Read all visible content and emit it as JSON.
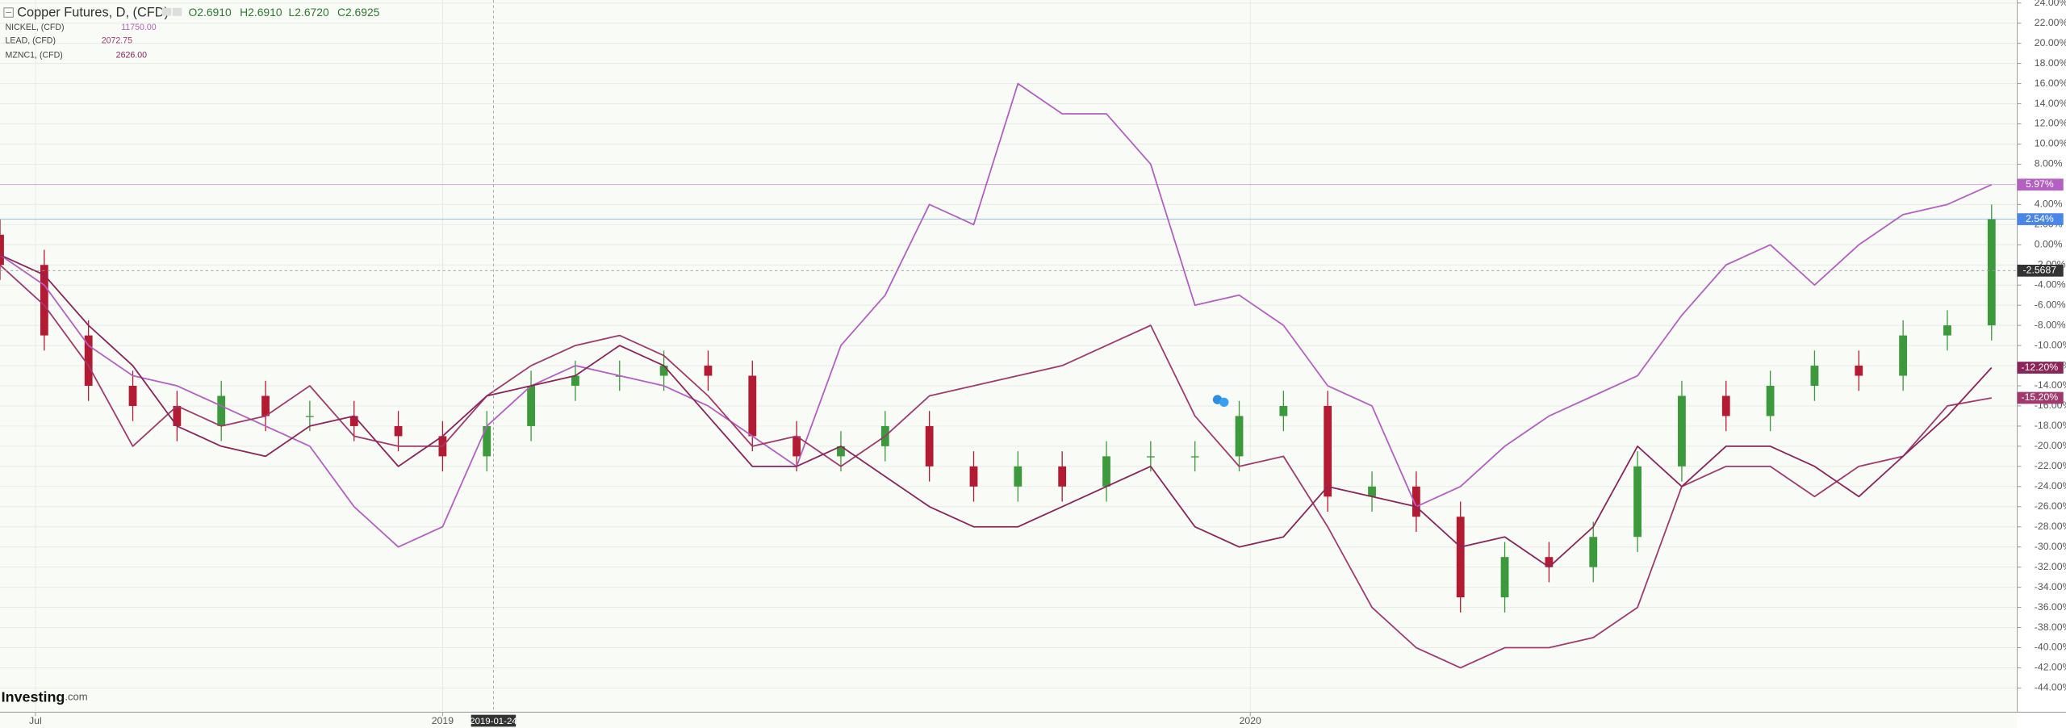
{
  "chart_data": {
    "type": "candlestick",
    "percent_scale": true,
    "grid": true,
    "watermark": {
      "brand": "Investing",
      "suffix": ".com"
    },
    "x": [
      "2018-06-15",
      "2018-07-05",
      "2018-07-25",
      "2018-08-14",
      "2018-09-03",
      "2018-09-23",
      "2018-10-13",
      "2018-11-02",
      "2018-11-22",
      "2018-12-12",
      "2019-01-01",
      "2019-01-21",
      "2019-02-10",
      "2019-03-02",
      "2019-03-22",
      "2019-04-11",
      "2019-05-01",
      "2019-05-21",
      "2019-06-10",
      "2019-06-30",
      "2019-07-20",
      "2019-08-09",
      "2019-08-29",
      "2019-09-18",
      "2019-10-08",
      "2019-10-28",
      "2019-11-17",
      "2019-12-07",
      "2019-12-27",
      "2020-01-16",
      "2020-02-05",
      "2020-02-25",
      "2020-03-16",
      "2020-04-05",
      "2020-04-25",
      "2020-05-15",
      "2020-06-04",
      "2020-06-24",
      "2020-07-14",
      "2020-08-03",
      "2020-08-23",
      "2020-09-12",
      "2020-10-02",
      "2020-10-22",
      "2020-11-11",
      "2020-12-01"
    ],
    "xlim": [
      "2018-06-15",
      "2020-12-12"
    ],
    "xticks": [
      {
        "value": "2018-07-01",
        "label": "Jul"
      },
      {
        "value": "2019-01-01",
        "label": "2019"
      },
      {
        "value": "2020-01-01",
        "label": "2020"
      }
    ],
    "ylim": [
      -46.4,
      24.3
    ],
    "yticks": [
      {
        "value": 24,
        "label": "24.00%"
      },
      {
        "value": 22,
        "label": "22.00%"
      },
      {
        "value": 20,
        "label": "20.00%"
      },
      {
        "value": 18,
        "label": "18.00%"
      },
      {
        "value": 16,
        "label": "16.00%"
      },
      {
        "value": 14,
        "label": "14.00%"
      },
      {
        "value": 12,
        "label": "12.00%"
      },
      {
        "value": 10,
        "label": "10.00%"
      },
      {
        "value": 8,
        "label": "8.00%"
      },
      {
        "value": 6,
        "label": "6.00%"
      },
      {
        "value": 4,
        "label": "4.00%"
      },
      {
        "value": 2,
        "label": "2.00%"
      },
      {
        "value": 0,
        "label": "0.00%"
      },
      {
        "value": -2,
        "label": "-2.00%"
      },
      {
        "value": -4,
        "label": "-4.00%"
      },
      {
        "value": -6,
        "label": "-6.00%"
      },
      {
        "value": -8,
        "label": "-8.00%"
      },
      {
        "value": -10,
        "label": "-10.00%"
      },
      {
        "value": -12,
        "label": "-12.00%"
      },
      {
        "value": -14,
        "label": "-14.00%"
      },
      {
        "value": -16,
        "label": "-16.00%"
      },
      {
        "value": -18,
        "label": "-18.00%"
      },
      {
        "value": -20,
        "label": "-20.00%"
      },
      {
        "value": -22,
        "label": "-22.00%"
      },
      {
        "value": -24,
        "label": "-24.00%"
      },
      {
        "value": -26,
        "label": "-26.00%"
      },
      {
        "value": -28,
        "label": "-28.00%"
      },
      {
        "value": -30,
        "label": "-30.00%"
      },
      {
        "value": -32,
        "label": "-32.00%"
      },
      {
        "value": -34,
        "label": "-34.00%"
      },
      {
        "value": -36,
        "label": "-36.00%"
      },
      {
        "value": -38,
        "label": "-38.00%"
      },
      {
        "value": -40,
        "label": "-40.00%"
      },
      {
        "value": -42,
        "label": "-42.00%"
      },
      {
        "value": -44,
        "label": "-44.00%"
      }
    ],
    "crosshair": {
      "x": "2019-01-24",
      "y": -2.5687
    },
    "series": [
      {
        "name": "Copper Futures, D, (CFD)",
        "type": "candlestick",
        "color": "#4a86e8",
        "up_color": "#3c9a3c",
        "down_color": "#b31b32",
        "quote": [
          "O2.6910",
          "H2.6910",
          "L2.6720",
          "C2.6925"
        ],
        "last_label": "2.54%",
        "open": [
          1,
          -2,
          -9,
          -14,
          -16,
          -18,
          -15,
          -17,
          -17,
          -18,
          -19,
          -21,
          -18,
          -14,
          -13,
          -13,
          -12,
          -13,
          -19,
          -21,
          -20,
          -18,
          -22,
          -24,
          -22,
          -24,
          -21,
          -21,
          -21,
          -17,
          -16,
          -25,
          -24,
          -27,
          -35,
          -31,
          -32,
          -29,
          -22,
          -15,
          -17,
          -14,
          -12,
          -13,
          -9,
          -8
        ],
        "high": [
          2.5,
          -0.5,
          -7.5,
          -12.5,
          -14.5,
          -13.5,
          -13.5,
          -15.5,
          -15.5,
          -16.5,
          -17.5,
          -16.5,
          -12.5,
          -11.5,
          -11.5,
          -10.5,
          -10.5,
          -11.5,
          -17.5,
          -18.5,
          -16.5,
          -16.5,
          -20.5,
          -20.5,
          -20.5,
          -19.5,
          -19.5,
          -19.5,
          -15.5,
          -14.5,
          -14.5,
          -22.5,
          -22.5,
          -25.5,
          -29.5,
          -29.5,
          -27.5,
          -20.5,
          -13.5,
          -13.5,
          -12.5,
          -10.5,
          -10.5,
          -7.5,
          -6.5,
          4
        ],
        "low": [
          -3.5,
          -10.5,
          -15.5,
          -17.5,
          -19.5,
          -19.5,
          -18.5,
          -18.5,
          -19.5,
          -20.5,
          -22.5,
          -22.5,
          -19.5,
          -15.5,
          -14.5,
          -14.5,
          -14.5,
          -20.5,
          -22.5,
          -22.5,
          -21.5,
          -23.5,
          -25.5,
          -25.5,
          -25.5,
          -25.5,
          -22.5,
          -22.5,
          -22.5,
          -18.5,
          -26.5,
          -26.5,
          -28.5,
          -36.5,
          -36.5,
          -33.5,
          -33.5,
          -30.5,
          -23.5,
          -18.5,
          -18.5,
          -15.5,
          -14.5,
          -14.5,
          -10.5,
          -9.5
        ],
        "close": [
          -2,
          -9,
          -14,
          -16,
          -18,
          -15,
          -17,
          -17,
          -18,
          -19,
          -21,
          -18,
          -14,
          -13,
          -13,
          -12,
          -13,
          -19,
          -21,
          -20,
          -18,
          -22,
          -24,
          -22,
          -24,
          -21,
          -21,
          -21,
          -17,
          -16,
          -25,
          -24,
          -27,
          -35,
          -31,
          -32,
          -29,
          -22,
          -15,
          -17,
          -14,
          -12,
          -13,
          -9,
          -8,
          2.54
        ]
      },
      {
        "name": "NICKEL, (CFD)",
        "type": "line",
        "color": "#b45fc2",
        "quote": "11750.00",
        "last_label": "5.97%",
        "values": [
          -1,
          -4,
          -10,
          -13,
          -14,
          -16,
          -18,
          -20,
          -26,
          -30,
          -28,
          -18,
          -14,
          -12,
          -13,
          -14,
          -16,
          -19,
          -22,
          -10,
          -5,
          4,
          2,
          16,
          13,
          13,
          8,
          -6,
          -5,
          -8,
          -14,
          -16,
          -26,
          -24,
          -20,
          -17,
          -15,
          -13,
          -7,
          -2,
          0,
          -4,
          0,
          3,
          4,
          5.97
        ]
      },
      {
        "name": "LEAD, (CFD)",
        "type": "line",
        "color": "#a03a6c",
        "quote": "2072.75",
        "last_label": "-15.20%",
        "values": [
          -2,
          -6,
          -12,
          -20,
          -16,
          -18,
          -17,
          -14,
          -19,
          -20,
          -20,
          -15,
          -12,
          -10,
          -9,
          -11,
          -15,
          -20,
          -19,
          -22,
          -19,
          -15,
          -14,
          -13,
          -12,
          -10,
          -8,
          -17,
          -22,
          -21,
          -28,
          -36,
          -40,
          -42,
          -40,
          -40,
          -39,
          -36,
          -24,
          -22,
          -22,
          -25,
          -22,
          -21,
          -16,
          -15.2
        ]
      },
      {
        "name": "MZNC1, (CFD)",
        "type": "line",
        "color": "#8b2458",
        "quote": "2626.00",
        "last_label": "-12.20%",
        "values": [
          -1,
          -3,
          -8,
          -12,
          -18,
          -20,
          -21,
          -18,
          -17,
          -22,
          -19,
          -15,
          -14,
          -13,
          -10,
          -12,
          -17,
          -22,
          -22,
          -20,
          -23,
          -26,
          -28,
          -28,
          -26,
          -24,
          -22,
          -28,
          -30,
          -29,
          -24,
          -25,
          -26,
          -30,
          -29,
          -32,
          -28,
          -20,
          -24,
          -20,
          -20,
          -22,
          -25,
          -21,
          -17,
          -12.2
        ]
      }
    ]
  }
}
